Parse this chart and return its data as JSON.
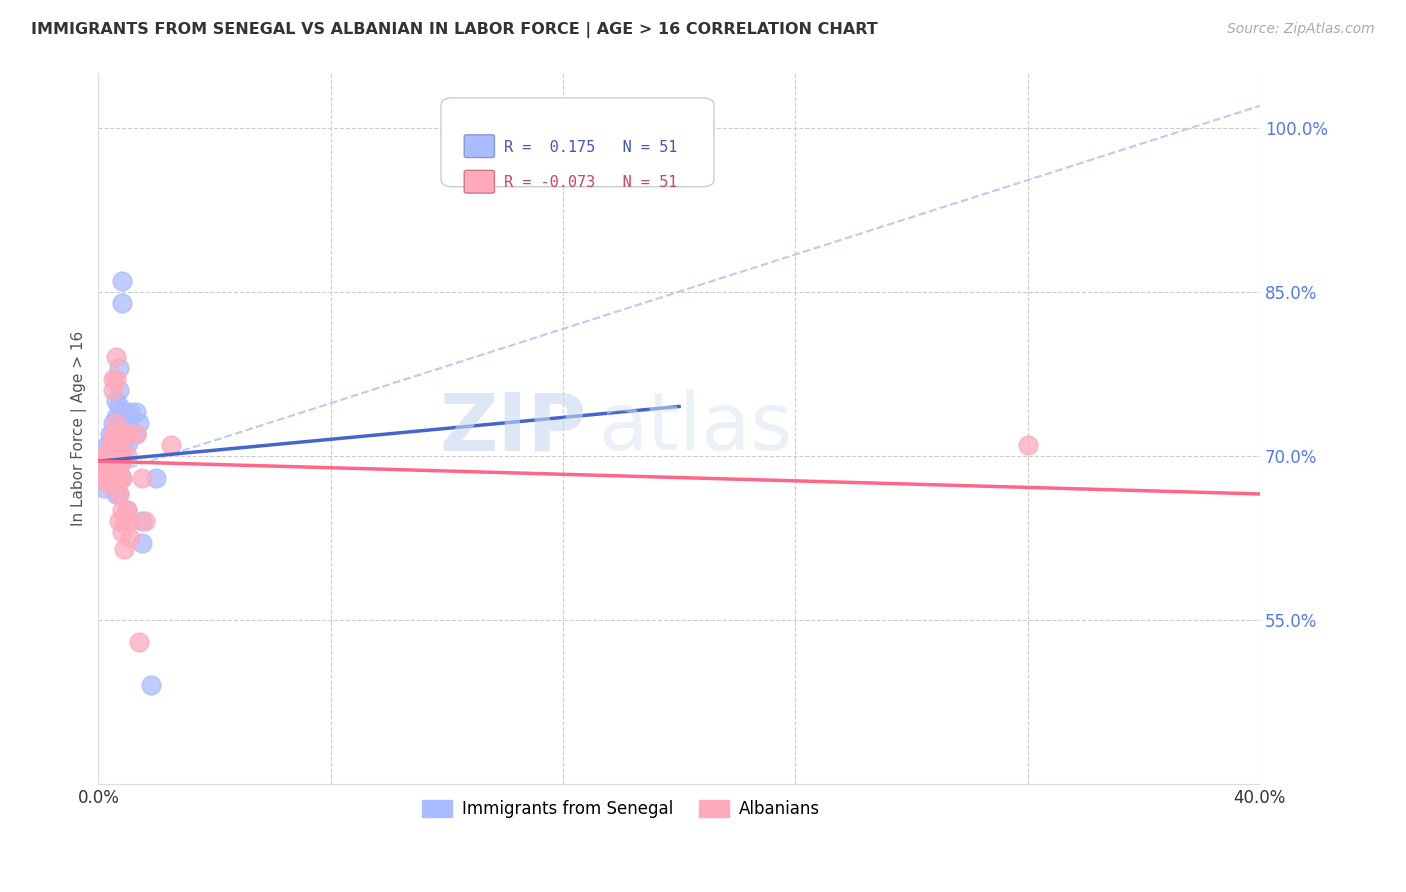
{
  "title": "IMMIGRANTS FROM SENEGAL VS ALBANIAN IN LABOR FORCE | AGE > 16 CORRELATION CHART",
  "source": "Source: ZipAtlas.com",
  "ylabel": "In Labor Force | Age > 16",
  "xlim": [
    0.0,
    0.4
  ],
  "ylim": [
    0.4,
    1.05
  ],
  "yticks": [
    0.55,
    0.7,
    0.85,
    1.0
  ],
  "ytick_labels": [
    "55.0%",
    "70.0%",
    "85.0%",
    "100.0%"
  ],
  "xticks": [
    0.0,
    0.08,
    0.16,
    0.24,
    0.32,
    0.4
  ],
  "xtick_labels": [
    "0.0%",
    "",
    "",
    "",
    "",
    "40.0%"
  ],
  "background_color": "#ffffff",
  "grid_color": "#cccccc",
  "right_tick_color": "#5577ee",
  "senegal_color": "#aabbff",
  "albanian_color": "#ffaabb",
  "senegal_line_color": "#4466cc",
  "albanian_line_color": "#ff6688",
  "dashed_line_color": "#bbccee",
  "legend_R_senegal": "R =  0.175",
  "legend_N_senegal": "N = 51",
  "legend_R_albanian": "R = -0.073",
  "legend_N_albanian": "N = 51",
  "watermark_zip": "ZIP",
  "watermark_atlas": "atlas",
  "senegal_line_x": [
    0.0,
    0.2
  ],
  "senegal_line_y": [
    0.695,
    0.745
  ],
  "albanian_line_x": [
    0.0,
    0.4
  ],
  "albanian_line_y": [
    0.695,
    0.665
  ],
  "dashed_line_x": [
    0.0,
    0.4
  ],
  "dashed_line_y": [
    0.68,
    1.02
  ],
  "senegal_points": [
    [
      0.001,
      0.685
    ],
    [
      0.002,
      0.67
    ],
    [
      0.002,
      0.69
    ],
    [
      0.003,
      0.7
    ],
    [
      0.003,
      0.695
    ],
    [
      0.003,
      0.71
    ],
    [
      0.003,
      0.68
    ],
    [
      0.004,
      0.72
    ],
    [
      0.004,
      0.7
    ],
    [
      0.004,
      0.695
    ],
    [
      0.005,
      0.73
    ],
    [
      0.005,
      0.715
    ],
    [
      0.005,
      0.7
    ],
    [
      0.005,
      0.695
    ],
    [
      0.005,
      0.69
    ],
    [
      0.005,
      0.685
    ],
    [
      0.005,
      0.68
    ],
    [
      0.006,
      0.75
    ],
    [
      0.006,
      0.735
    ],
    [
      0.006,
      0.72
    ],
    [
      0.006,
      0.71
    ],
    [
      0.006,
      0.695
    ],
    [
      0.006,
      0.685
    ],
    [
      0.006,
      0.665
    ],
    [
      0.007,
      0.78
    ],
    [
      0.007,
      0.76
    ],
    [
      0.007,
      0.745
    ],
    [
      0.007,
      0.73
    ],
    [
      0.007,
      0.715
    ],
    [
      0.007,
      0.7
    ],
    [
      0.007,
      0.69
    ],
    [
      0.007,
      0.68
    ],
    [
      0.007,
      0.665
    ],
    [
      0.008,
      0.86
    ],
    [
      0.008,
      0.84
    ],
    [
      0.008,
      0.71
    ],
    [
      0.008,
      0.695
    ],
    [
      0.008,
      0.68
    ],
    [
      0.009,
      0.74
    ],
    [
      0.009,
      0.72
    ],
    [
      0.01,
      0.73
    ],
    [
      0.01,
      0.71
    ],
    [
      0.01,
      0.65
    ],
    [
      0.011,
      0.74
    ],
    [
      0.013,
      0.74
    ],
    [
      0.013,
      0.72
    ],
    [
      0.014,
      0.73
    ],
    [
      0.015,
      0.64
    ],
    [
      0.015,
      0.62
    ],
    [
      0.018,
      0.49
    ],
    [
      0.02,
      0.68
    ]
  ],
  "albanian_points": [
    [
      0.002,
      0.7
    ],
    [
      0.002,
      0.695
    ],
    [
      0.003,
      0.69
    ],
    [
      0.003,
      0.685
    ],
    [
      0.003,
      0.68
    ],
    [
      0.003,
      0.675
    ],
    [
      0.004,
      0.71
    ],
    [
      0.004,
      0.7
    ],
    [
      0.004,
      0.695
    ],
    [
      0.004,
      0.69
    ],
    [
      0.004,
      0.685
    ],
    [
      0.005,
      0.77
    ],
    [
      0.005,
      0.76
    ],
    [
      0.005,
      0.72
    ],
    [
      0.005,
      0.71
    ],
    [
      0.005,
      0.7
    ],
    [
      0.005,
      0.695
    ],
    [
      0.005,
      0.68
    ],
    [
      0.006,
      0.79
    ],
    [
      0.006,
      0.77
    ],
    [
      0.006,
      0.73
    ],
    [
      0.006,
      0.72
    ],
    [
      0.006,
      0.7
    ],
    [
      0.006,
      0.69
    ],
    [
      0.006,
      0.68
    ],
    [
      0.006,
      0.67
    ],
    [
      0.007,
      0.71
    ],
    [
      0.007,
      0.7
    ],
    [
      0.007,
      0.69
    ],
    [
      0.007,
      0.68
    ],
    [
      0.007,
      0.665
    ],
    [
      0.007,
      0.64
    ],
    [
      0.008,
      0.72
    ],
    [
      0.008,
      0.7
    ],
    [
      0.008,
      0.68
    ],
    [
      0.008,
      0.65
    ],
    [
      0.008,
      0.63
    ],
    [
      0.009,
      0.72
    ],
    [
      0.009,
      0.64
    ],
    [
      0.009,
      0.615
    ],
    [
      0.01,
      0.72
    ],
    [
      0.01,
      0.7
    ],
    [
      0.01,
      0.65
    ],
    [
      0.011,
      0.64
    ],
    [
      0.011,
      0.625
    ],
    [
      0.013,
      0.72
    ],
    [
      0.014,
      0.53
    ],
    [
      0.015,
      0.68
    ],
    [
      0.016,
      0.64
    ],
    [
      0.025,
      0.71
    ],
    [
      0.32,
      0.71
    ]
  ]
}
